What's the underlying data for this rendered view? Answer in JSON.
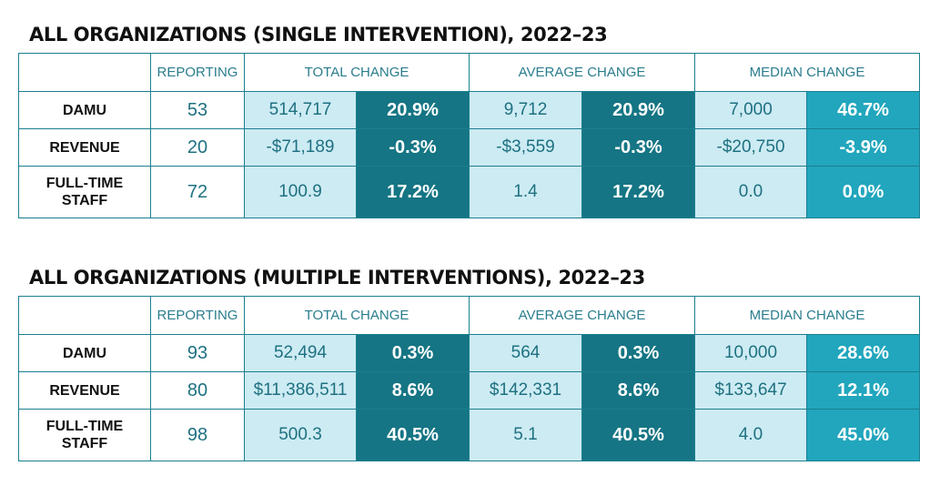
{
  "tables": [
    {
      "title": "ALL ORGANIZATIONS (SINGLE INTERVENTION), 2022–23",
      "headers": {
        "blank": "",
        "reporting": "REPORTING",
        "total": "TOTAL CHANGE",
        "average": "AVERAGE CHANGE",
        "median": "MEDIAN CHANGE"
      },
      "rows": [
        {
          "label": "DAMU",
          "reporting": "53",
          "total_value": "514,717",
          "total_pct": "20.9%",
          "avg_value": "9,712",
          "avg_pct": "20.9%",
          "median_value": "7,000",
          "median_pct": "46.7%"
        },
        {
          "label": "REVENUE",
          "reporting": "20",
          "total_value": "-$71,189",
          "total_pct": "-0.3%",
          "avg_value": "-$3,559",
          "avg_pct": "-0.3%",
          "median_value": "-$20,750",
          "median_pct": "-3.9%"
        },
        {
          "label_line1": "FULL-TIME",
          "label_line2": "STAFF",
          "reporting": "72",
          "total_value": "100.9",
          "total_pct": "17.2%",
          "avg_value": "1.4",
          "avg_pct": "17.2%",
          "median_value": "0.0",
          "median_pct": "0.0%"
        }
      ]
    },
    {
      "title": "ALL ORGANIZATIONS (MULTIPLE INTERVENTIONS), 2022–23",
      "headers": {
        "blank": "",
        "reporting": "REPORTING",
        "total": "TOTAL CHANGE",
        "average": "AVERAGE CHANGE",
        "median": "MEDIAN CHANGE"
      },
      "rows": [
        {
          "label": "DAMU",
          "reporting": "93",
          "total_value": "52,494",
          "total_pct": "0.3%",
          "avg_value": "564",
          "avg_pct": "0.3%",
          "median_value": "10,000",
          "median_pct": "28.6%"
        },
        {
          "label": "REVENUE",
          "reporting": "80",
          "total_value": "$11,386,511",
          "total_pct": "8.6%",
          "avg_value": "$142,331",
          "avg_pct": "8.6%",
          "median_value": "$133,647",
          "median_pct": "12.1%"
        },
        {
          "label_line1": "FULL-TIME",
          "label_line2": "STAFF",
          "reporting": "98",
          "total_value": "500.3",
          "total_pct": "40.5%",
          "avg_value": "5.1",
          "avg_pct": "40.5%",
          "median_value": "4.0",
          "median_pct": "45.0%"
        }
      ]
    }
  ],
  "colors": {
    "border": "#1b7f90",
    "value_bg": "#cdebf3",
    "pct_dark_bg": "#157584",
    "pct_light_bg": "#21a6bd",
    "header_text": "#2a7d8d"
  }
}
